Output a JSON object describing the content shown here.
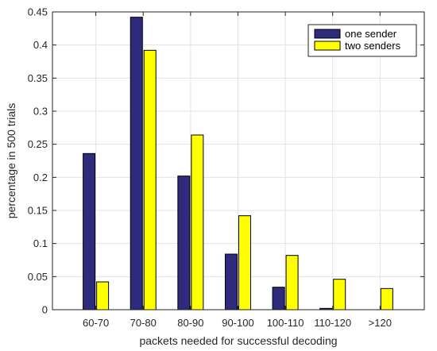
{
  "chart_data": {
    "type": "bar",
    "categories": [
      "60-70",
      "70-80",
      "80-90",
      "90-100",
      "100-110",
      "110-120",
      ">120"
    ],
    "series": [
      {
        "name": "one sender",
        "color": "#2e2a7c",
        "values": [
          0.236,
          0.442,
          0.202,
          0.084,
          0.034,
          0.002,
          0.0
        ]
      },
      {
        "name": "two senders",
        "color": "#ffff00",
        "values": [
          0.042,
          0.392,
          0.264,
          0.142,
          0.082,
          0.046,
          0.032
        ]
      }
    ],
    "title": "",
    "xlabel": "packets needed for successful decoding",
    "ylabel": "percentage in 500 trials",
    "ylim": [
      0,
      0.45
    ],
    "yticks": [
      0,
      0.05,
      0.1,
      0.15,
      0.2,
      0.25,
      0.3,
      0.35,
      0.4,
      0.45
    ],
    "ytick_labels": [
      "0",
      "0.05",
      "0.1",
      "0.15",
      "0.2",
      "0.25",
      "0.3",
      "0.35",
      "0.4",
      "0.45"
    ],
    "grid": true,
    "legend_position": "top-right"
  }
}
